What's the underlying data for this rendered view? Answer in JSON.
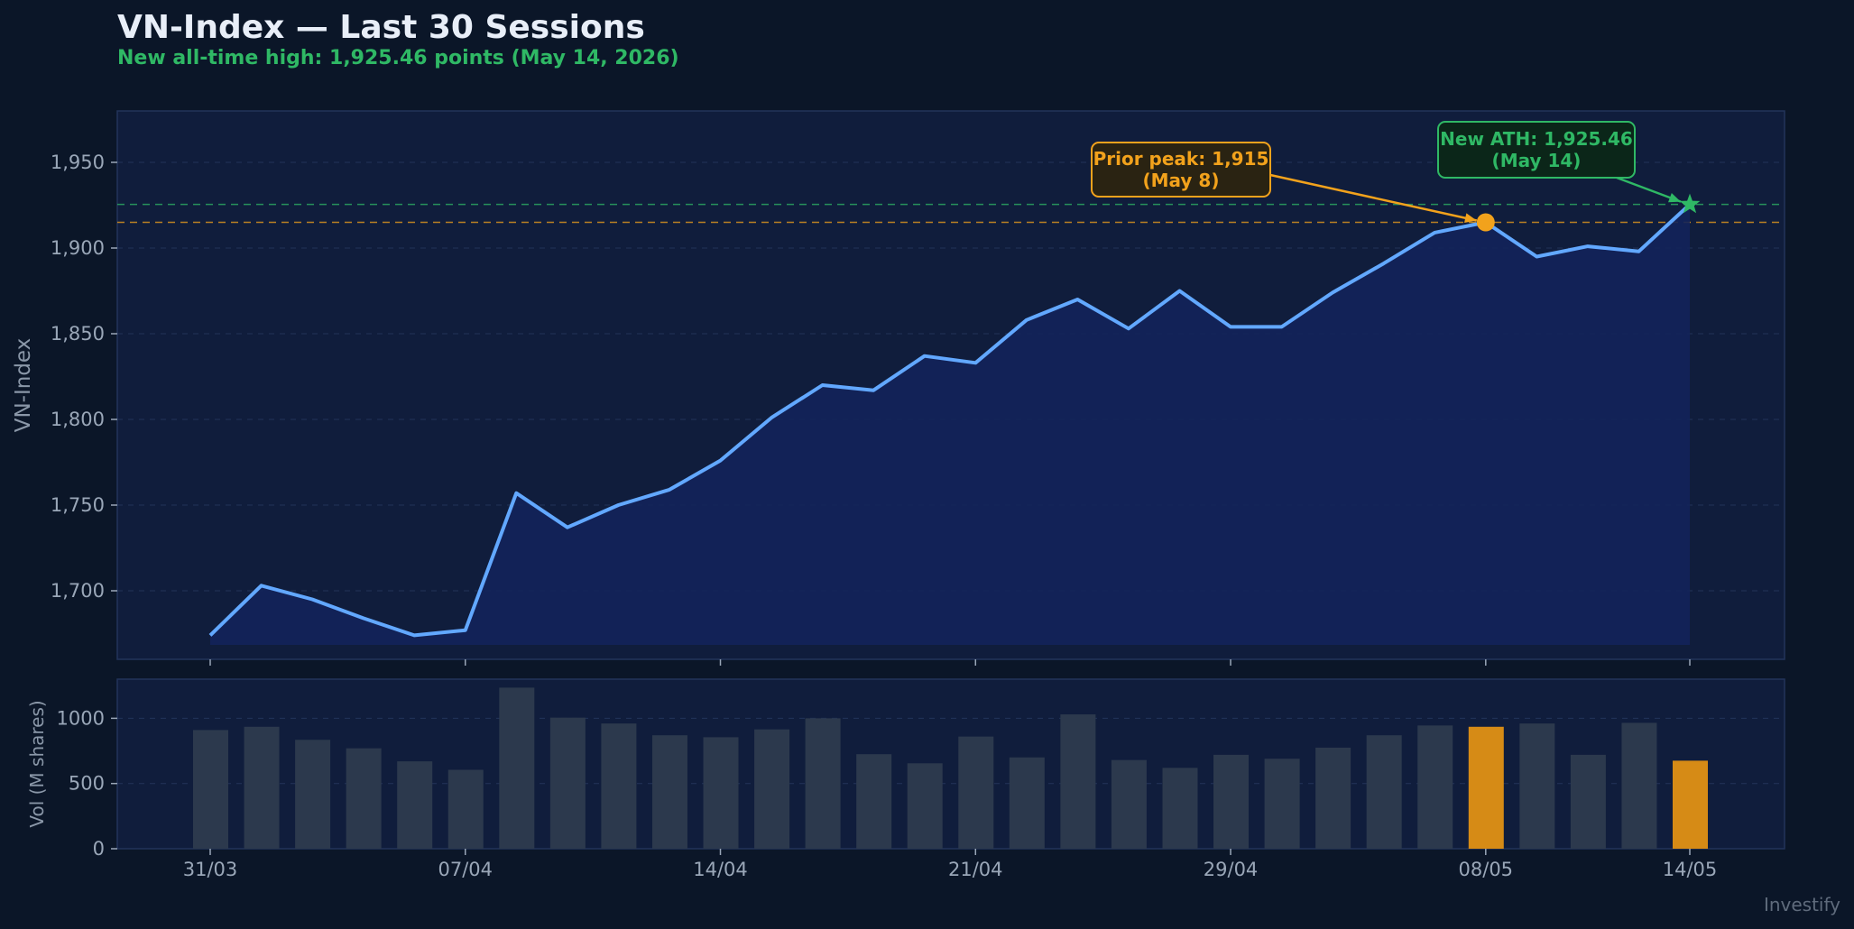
{
  "header": {
    "title": "VN-Index — Last 30 Sessions",
    "subtitle": "New all-time high: 1,925.46 points (May 14, 2026)"
  },
  "colors": {
    "background": "#0b1628",
    "plot_bg": "#101d3c",
    "line": "#62a8ff",
    "area": "#13235a",
    "ath": "#2fb865",
    "peak": "#f2a21c",
    "bar": "#2c394d",
    "bar_highlight": "#d68b16"
  },
  "watermark": "Investify",
  "chart_data": [
    {
      "type": "line",
      "ylabel": "VN-Index",
      "ylim": [
        1660,
        1980
      ],
      "yticks": [
        1700,
        1750,
        1800,
        1850,
        1900,
        1950
      ],
      "ytick_labels": [
        "1,700",
        "1,750",
        "1,800",
        "1,850",
        "1,900",
        "1,950"
      ],
      "x_tick_indices": [
        0,
        5,
        10,
        15,
        20,
        25,
        29
      ],
      "x_tick_labels": [
        "31/03",
        "07/04",
        "14/04",
        "21/04",
        "29/04",
        "08/05",
        "14/05"
      ],
      "grid": true,
      "fill_under": true,
      "values": [
        1674,
        1703,
        1695,
        1684,
        1674,
        1677,
        1757,
        1737,
        1750,
        1759,
        1776,
        1801,
        1820,
        1817,
        1837,
        1833,
        1858,
        1870,
        1853,
        1875,
        1854,
        1854,
        1874,
        1891,
        1909,
        1915,
        1895,
        1901,
        1898,
        1925.46
      ],
      "reference_lines": [
        1925.46,
        1915
      ],
      "annotations": [
        {
          "index": 25,
          "value": 1915,
          "text": [
            "Prior peak: 1,915",
            "(May 8)"
          ],
          "marker": "circle"
        },
        {
          "index": 29,
          "value": 1925.46,
          "text": [
            "New ATH: 1,925.46",
            "(May 14)"
          ],
          "marker": "star"
        }
      ]
    },
    {
      "type": "bar",
      "ylabel": "Vol (M shares)",
      "ylim": [
        0,
        1300
      ],
      "yticks": [
        0,
        500,
        1000
      ],
      "ytick_labels": [
        "0",
        "500",
        "1000"
      ],
      "grid": true,
      "values": [
        910,
        935,
        835,
        770,
        670,
        605,
        1235,
        1005,
        960,
        870,
        855,
        915,
        1000,
        725,
        655,
        860,
        700,
        1030,
        680,
        620,
        720,
        690,
        775,
        870,
        945,
        935,
        960,
        720,
        965,
        675
      ],
      "highlight_indices": [
        25,
        29
      ]
    }
  ]
}
